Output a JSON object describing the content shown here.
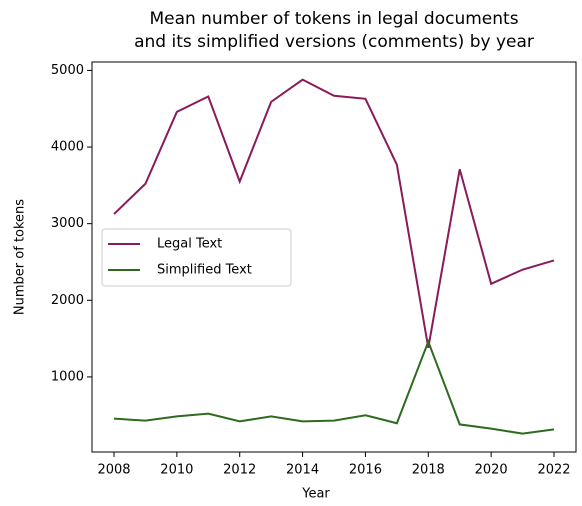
{
  "chart_data": {
    "type": "line",
    "title": "Mean number of tokens in legal documents\nand its simplified versions (comments) by year",
    "xlabel": "Year",
    "ylabel": "Number of tokens",
    "x": [
      2008,
      2009,
      2010,
      2011,
      2012,
      2013,
      2014,
      2015,
      2016,
      2017,
      2018,
      2019,
      2020,
      2021,
      2022
    ],
    "series": [
      {
        "name": "Legal Text",
        "color": "#8b1a5a",
        "values": [
          3125,
          3521,
          4460,
          4660,
          3550,
          4590,
          4880,
          4670,
          4630,
          3770,
          1380,
          3710,
          2215,
          2400,
          2520
        ]
      },
      {
        "name": "Simplified Text",
        "color": "#2e6b1f",
        "values": [
          455,
          430,
          485,
          520,
          420,
          485,
          420,
          430,
          500,
          395,
          1460,
          380,
          325,
          260,
          315
        ]
      }
    ],
    "xlim": [
      2007.3,
      2022.7
    ],
    "xticks": [
      2008,
      2010,
      2012,
      2014,
      2016,
      2018,
      2020,
      2022
    ],
    "ylim": [
      20,
      5110
    ],
    "yticks": [
      1000,
      2000,
      3000,
      4000,
      5000
    ],
    "legend": "center left"
  }
}
